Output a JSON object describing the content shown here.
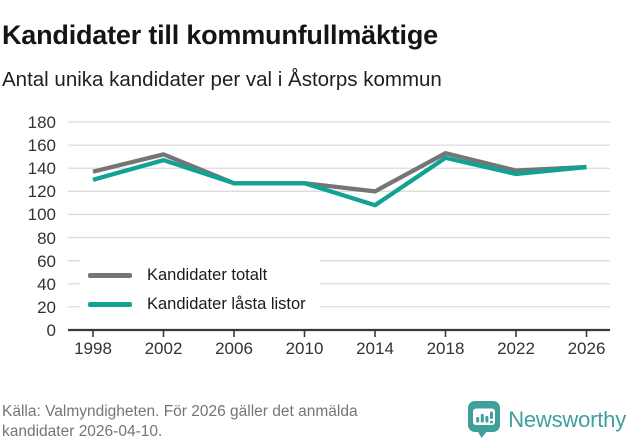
{
  "title": "Kandidater till kommunfullmäktige",
  "subtitle": "Antal unika kandidater per val i Åstorps kommun",
  "legend": {
    "total_label": "Kandidater totalt",
    "locked_label": "Kandidater låsta listor"
  },
  "footer": {
    "source": "Källa: Valmyndigheten. För 2026 gäller det anmälda kandidater 2026-04-10.",
    "brand": "Newsworthy"
  },
  "colors": {
    "total_line": "#757578",
    "locked_line": "#12a294",
    "grid": "#dcdcdc",
    "axis": "#3a3a3a",
    "brand_teal": "#3f9f9a"
  },
  "chart_data": {
    "type": "line",
    "title": "Kandidater till kommunfullmäktige",
    "subtitle": "Antal unika kandidater per val i Åstorps kommun",
    "categories": [
      "1998",
      "2002",
      "2006",
      "2010",
      "2014",
      "2018",
      "2022",
      "2026"
    ],
    "series": [
      {
        "name": "Kandidater totalt",
        "color": "#757578",
        "values": [
          137,
          152,
          127,
          127,
          120,
          153,
          138,
          141
        ]
      },
      {
        "name": "Kandidater låsta listor",
        "color": "#12a294",
        "values": [
          130,
          147,
          127,
          127,
          108,
          149,
          135,
          141
        ]
      }
    ],
    "xlabel": "",
    "ylabel": "",
    "ylim": [
      0,
      180
    ],
    "ytick_step": 20,
    "grid": true,
    "legend_position": "inside-bottom-left"
  }
}
